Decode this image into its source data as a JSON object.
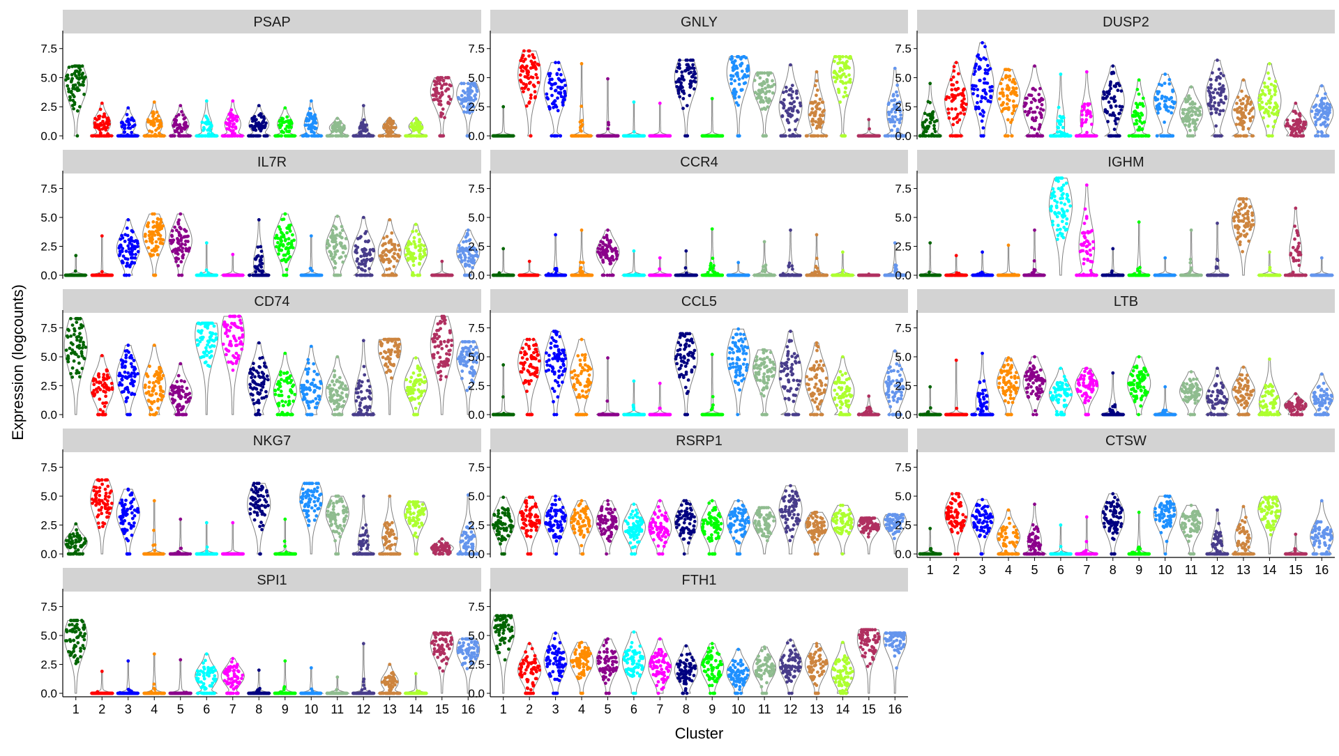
{
  "chart_data": {
    "type": "violin",
    "ylabel": "Expression (logcounts)",
    "xlabel": "Cluster",
    "ylim": [
      -0.3,
      8.8
    ],
    "yticks": [
      0.0,
      2.5,
      5.0,
      7.5
    ],
    "ytick_labels": [
      "0.0",
      "2.5",
      "5.0",
      "7.5"
    ],
    "categories": [
      "1",
      "2",
      "3",
      "4",
      "5",
      "6",
      "7",
      "8",
      "9",
      "10",
      "11",
      "12",
      "13",
      "14",
      "15",
      "16"
    ],
    "cluster_colors": [
      "#006400",
      "#FF0000",
      "#0000FF",
      "#FF8C00",
      "#8B008B",
      "#00FFFF",
      "#FF00FF",
      "#000080",
      "#00FF00",
      "#1E90FF",
      "#8FBC8F",
      "#483D8B",
      "#CD853F",
      "#ADFF2F",
      "#B03060",
      "#6495ED"
    ],
    "layout": "facet_wrap 3 columns, x-axis labels on last row of each column",
    "panels": [
      {
        "gene": "PSAP",
        "medians": [
          4.5,
          1.1,
          1.0,
          1.0,
          1.0,
          0.8,
          1.0,
          1.0,
          1.0,
          1.0,
          0.7,
          0.5,
          0.8,
          0.8,
          3.8,
          3.6
        ],
        "max": [
          6.0,
          2.8,
          2.4,
          2.9,
          2.6,
          3.0,
          3.0,
          2.6,
          2.4,
          3.0,
          1.5,
          2.6,
          1.5,
          1.5,
          5.0,
          4.5
        ],
        "zero": [
          0.05,
          0.4,
          0.45,
          0.4,
          0.4,
          0.5,
          0.4,
          0.35,
          0.45,
          0.45,
          0.45,
          0.55,
          0.5,
          0.5,
          0.1,
          0.05
        ]
      },
      {
        "gene": "GNLY",
        "medians": [
          0.0,
          5.3,
          4.0,
          0.5,
          0.1,
          0.0,
          0.0,
          5.0,
          0.0,
          5.5,
          4.3,
          2.5,
          2.0,
          5.5,
          0.0,
          2.0
        ],
        "max": [
          2.5,
          7.3,
          6.3,
          6.2,
          4.9,
          2.9,
          2.8,
          6.5,
          3.2,
          6.8,
          5.4,
          6.1,
          5.5,
          6.8,
          1.4,
          5.8
        ],
        "zero": [
          0.9,
          0.05,
          0.2,
          0.8,
          0.9,
          0.95,
          0.95,
          0.05,
          0.95,
          0.05,
          0.1,
          0.3,
          0.4,
          0.1,
          0.9,
          0.4
        ]
      },
      {
        "gene": "DUSP2",
        "medians": [
          1.0,
          3.0,
          4.3,
          3.5,
          2.5,
          1.0,
          1.5,
          3.0,
          2.0,
          3.0,
          2.0,
          3.5,
          2.0,
          3.0,
          1.0,
          2.0
        ],
        "max": [
          4.5,
          6.3,
          8.0,
          5.7,
          6.0,
          5.3,
          5.5,
          6.0,
          4.8,
          5.3,
          4.2,
          6.5,
          4.8,
          6.2,
          2.8,
          4.3
        ],
        "zero": [
          0.3,
          0.2,
          0.05,
          0.15,
          0.25,
          0.6,
          0.45,
          0.25,
          0.45,
          0.3,
          0.1,
          0.2,
          0.3,
          0.05,
          0.2,
          0.2
        ]
      },
      {
        "gene": "IL7R",
        "medians": [
          0.0,
          0.0,
          2.3,
          3.5,
          3.0,
          0.0,
          0.0,
          1.0,
          3.0,
          0.0,
          2.5,
          2.0,
          2.0,
          2.0,
          0.0,
          2.0
        ],
        "max": [
          1.7,
          3.4,
          4.8,
          5.3,
          5.3,
          2.8,
          1.8,
          4.8,
          5.3,
          3.4,
          5.1,
          5.0,
          4.8,
          4.4,
          1.2,
          3.9
        ],
        "zero": [
          0.95,
          0.95,
          0.1,
          0.05,
          0.05,
          0.95,
          0.95,
          0.5,
          0.05,
          0.9,
          0.1,
          0.25,
          0.2,
          0.1,
          0.95,
          0.1
        ]
      },
      {
        "gene": "CCR4",
        "medians": [
          0.0,
          0.0,
          0.0,
          0.0,
          2.0,
          0.0,
          0.0,
          0.0,
          0.0,
          0.0,
          0.0,
          0.0,
          0.0,
          0.0,
          0.0,
          0.0
        ],
        "max": [
          2.3,
          1.2,
          3.5,
          3.9,
          3.9,
          2.1,
          1.5,
          2.1,
          4.0,
          1.1,
          2.9,
          3.9,
          3.5,
          2.0,
          0.1,
          2.8
        ],
        "zero": [
          0.95,
          0.97,
          0.8,
          0.7,
          0.2,
          0.9,
          0.95,
          0.9,
          0.7,
          0.95,
          0.7,
          0.7,
          0.7,
          0.9,
          1.0,
          0.7
        ]
      },
      {
        "gene": "IGHM",
        "medians": [
          0.0,
          0.0,
          0.0,
          0.0,
          0.0,
          6.0,
          2.5,
          0.0,
          0.0,
          0.0,
          0.0,
          0.0,
          4.7,
          0.0,
          2.0,
          0.0
        ],
        "max": [
          2.8,
          1.7,
          2.0,
          2.6,
          3.9,
          8.4,
          7.8,
          2.3,
          4.6,
          1.5,
          3.9,
          4.5,
          6.6,
          2.0,
          5.8,
          1.5
        ],
        "zero": [
          0.95,
          0.95,
          0.9,
          0.9,
          0.85,
          0.0,
          0.4,
          0.9,
          0.8,
          0.95,
          0.85,
          0.8,
          0.0,
          0.9,
          0.5,
          0.95
        ]
      },
      {
        "gene": "CD74",
        "medians": [
          6.0,
          2.3,
          3.3,
          2.5,
          1.8,
          6.9,
          6.9,
          2.8,
          2.0,
          2.3,
          2.0,
          1.5,
          5.8,
          2.6,
          6.0,
          4.8
        ],
        "max": [
          8.3,
          5.1,
          6.0,
          6.0,
          4.4,
          7.9,
          8.5,
          6.2,
          5.3,
          5.9,
          5.0,
          6.4,
          6.5,
          4.9,
          8.5,
          6.3
        ],
        "zero": [
          0.0,
          0.1,
          0.05,
          0.1,
          0.15,
          0.0,
          0.0,
          0.1,
          0.2,
          0.1,
          0.1,
          0.3,
          0.0,
          0.05,
          0.0,
          0.0
        ]
      },
      {
        "gene": "CCL5",
        "medians": [
          0.0,
          4.5,
          4.5,
          3.5,
          0.0,
          0.0,
          0.0,
          5.0,
          0.0,
          5.0,
          4.0,
          3.5,
          3.0,
          2.0,
          0.3,
          2.5
        ],
        "max": [
          4.3,
          6.5,
          7.2,
          6.5,
          4.9,
          2.9,
          2.7,
          7.0,
          5.2,
          7.4,
          5.6,
          7.2,
          6.2,
          5.0,
          1.6,
          5.5
        ],
        "zero": [
          0.85,
          0.1,
          0.05,
          0.2,
          0.9,
          0.9,
          0.9,
          0.05,
          0.9,
          0.05,
          0.1,
          0.3,
          0.2,
          0.2,
          0.7,
          0.2
        ]
      },
      {
        "gene": "LTB",
        "medians": [
          0.0,
          0.0,
          1.0,
          2.8,
          2.8,
          1.8,
          2.5,
          0.2,
          2.7,
          0.0,
          2.0,
          1.5,
          2.0,
          1.0,
          0.8,
          1.5
        ],
        "max": [
          2.4,
          4.7,
          5.3,
          4.9,
          5.0,
          4.0,
          4.0,
          3.6,
          5.0,
          2.4,
          3.7,
          4.0,
          4.1,
          4.8,
          1.8,
          3.5
        ],
        "zero": [
          0.95,
          0.9,
          0.4,
          0.1,
          0.05,
          0.1,
          0.05,
          0.6,
          0.05,
          0.8,
          0.1,
          0.3,
          0.2,
          0.2,
          0.2,
          0.2
        ]
      },
      {
        "gene": "NKG7",
        "medians": [
          1.0,
          4.7,
          3.5,
          0.0,
          0.0,
          0.0,
          0.0,
          4.3,
          0.0,
          4.8,
          3.5,
          1.0,
          1.5,
          3.5,
          0.5,
          1.0
        ],
        "max": [
          2.6,
          6.4,
          5.6,
          4.6,
          3.0,
          2.7,
          2.7,
          6.1,
          3.0,
          6.1,
          5.0,
          5.0,
          5.0,
          4.5,
          1.3,
          5.1
        ],
        "zero": [
          0.2,
          0.0,
          0.05,
          0.85,
          0.9,
          0.95,
          0.95,
          0.05,
          0.95,
          0.0,
          0.05,
          0.5,
          0.4,
          0.05,
          0.2,
          0.3
        ]
      },
      {
        "gene": "RSRP1",
        "medians": [
          2.8,
          3.0,
          3.0,
          2.8,
          2.8,
          2.3,
          2.3,
          2.8,
          2.5,
          2.8,
          2.8,
          3.8,
          2.5,
          2.8,
          2.5,
          2.8
        ],
        "max": [
          4.9,
          4.9,
          5.0,
          4.6,
          4.6,
          4.3,
          4.6,
          4.6,
          4.6,
          4.6,
          4.0,
          5.9,
          3.6,
          4.2,
          3.1,
          3.4
        ],
        "zero": [
          0.05,
          0.05,
          0.05,
          0.05,
          0.05,
          0.05,
          0.05,
          0.05,
          0.1,
          0.05,
          0.0,
          0.02,
          0.05,
          0.05,
          0.0,
          0.0
        ]
      },
      {
        "gene": "CTSW",
        "medians": [
          0.0,
          3.5,
          3.0,
          1.5,
          1.0,
          0.0,
          0.0,
          3.2,
          0.0,
          3.5,
          2.7,
          1.0,
          1.5,
          3.8,
          0.0,
          1.5
        ],
        "max": [
          2.2,
          5.2,
          4.7,
          3.8,
          4.3,
          2.5,
          3.2,
          5.2,
          3.6,
          5.0,
          4.2,
          3.8,
          4.1,
          4.9,
          1.7,
          4.6
        ],
        "zero": [
          0.9,
          0.05,
          0.05,
          0.3,
          0.4,
          0.9,
          0.9,
          0.05,
          0.8,
          0.02,
          0.1,
          0.5,
          0.4,
          0.0,
          0.8,
          0.2
        ]
      },
      {
        "gene": "SPI1",
        "medians": [
          4.9,
          0.0,
          0.0,
          0.0,
          0.0,
          1.5,
          1.5,
          0.0,
          0.0,
          0.0,
          0.0,
          0.0,
          1.0,
          0.0,
          4.3,
          3.8
        ],
        "max": [
          6.3,
          1.9,
          2.8,
          3.4,
          2.9,
          3.4,
          3.0,
          2.0,
          2.8,
          2.2,
          1.4,
          4.3,
          2.5,
          1.7,
          5.2,
          4.7
        ],
        "zero": [
          0.0,
          0.9,
          0.85,
          0.8,
          0.85,
          0.3,
          0.2,
          0.85,
          0.85,
          0.85,
          0.9,
          0.8,
          0.4,
          0.9,
          0.0,
          0.0
        ]
      },
      {
        "gene": "FTH1",
        "medians": [
          5.5,
          2.0,
          2.8,
          2.8,
          2.8,
          2.8,
          2.3,
          2.0,
          2.3,
          1.8,
          2.2,
          2.5,
          2.5,
          1.8,
          4.7,
          4.7
        ],
        "max": [
          6.7,
          4.3,
          5.2,
          4.4,
          4.7,
          5.3,
          4.7,
          4.1,
          4.3,
          3.8,
          4.0,
          4.6,
          4.3,
          4.4,
          5.5,
          5.2
        ],
        "zero": [
          0.0,
          0.1,
          0.05,
          0.05,
          0.05,
          0.05,
          0.05,
          0.1,
          0.05,
          0.1,
          0.05,
          0.05,
          0.05,
          0.1,
          0.0,
          0.0
        ]
      }
    ]
  }
}
